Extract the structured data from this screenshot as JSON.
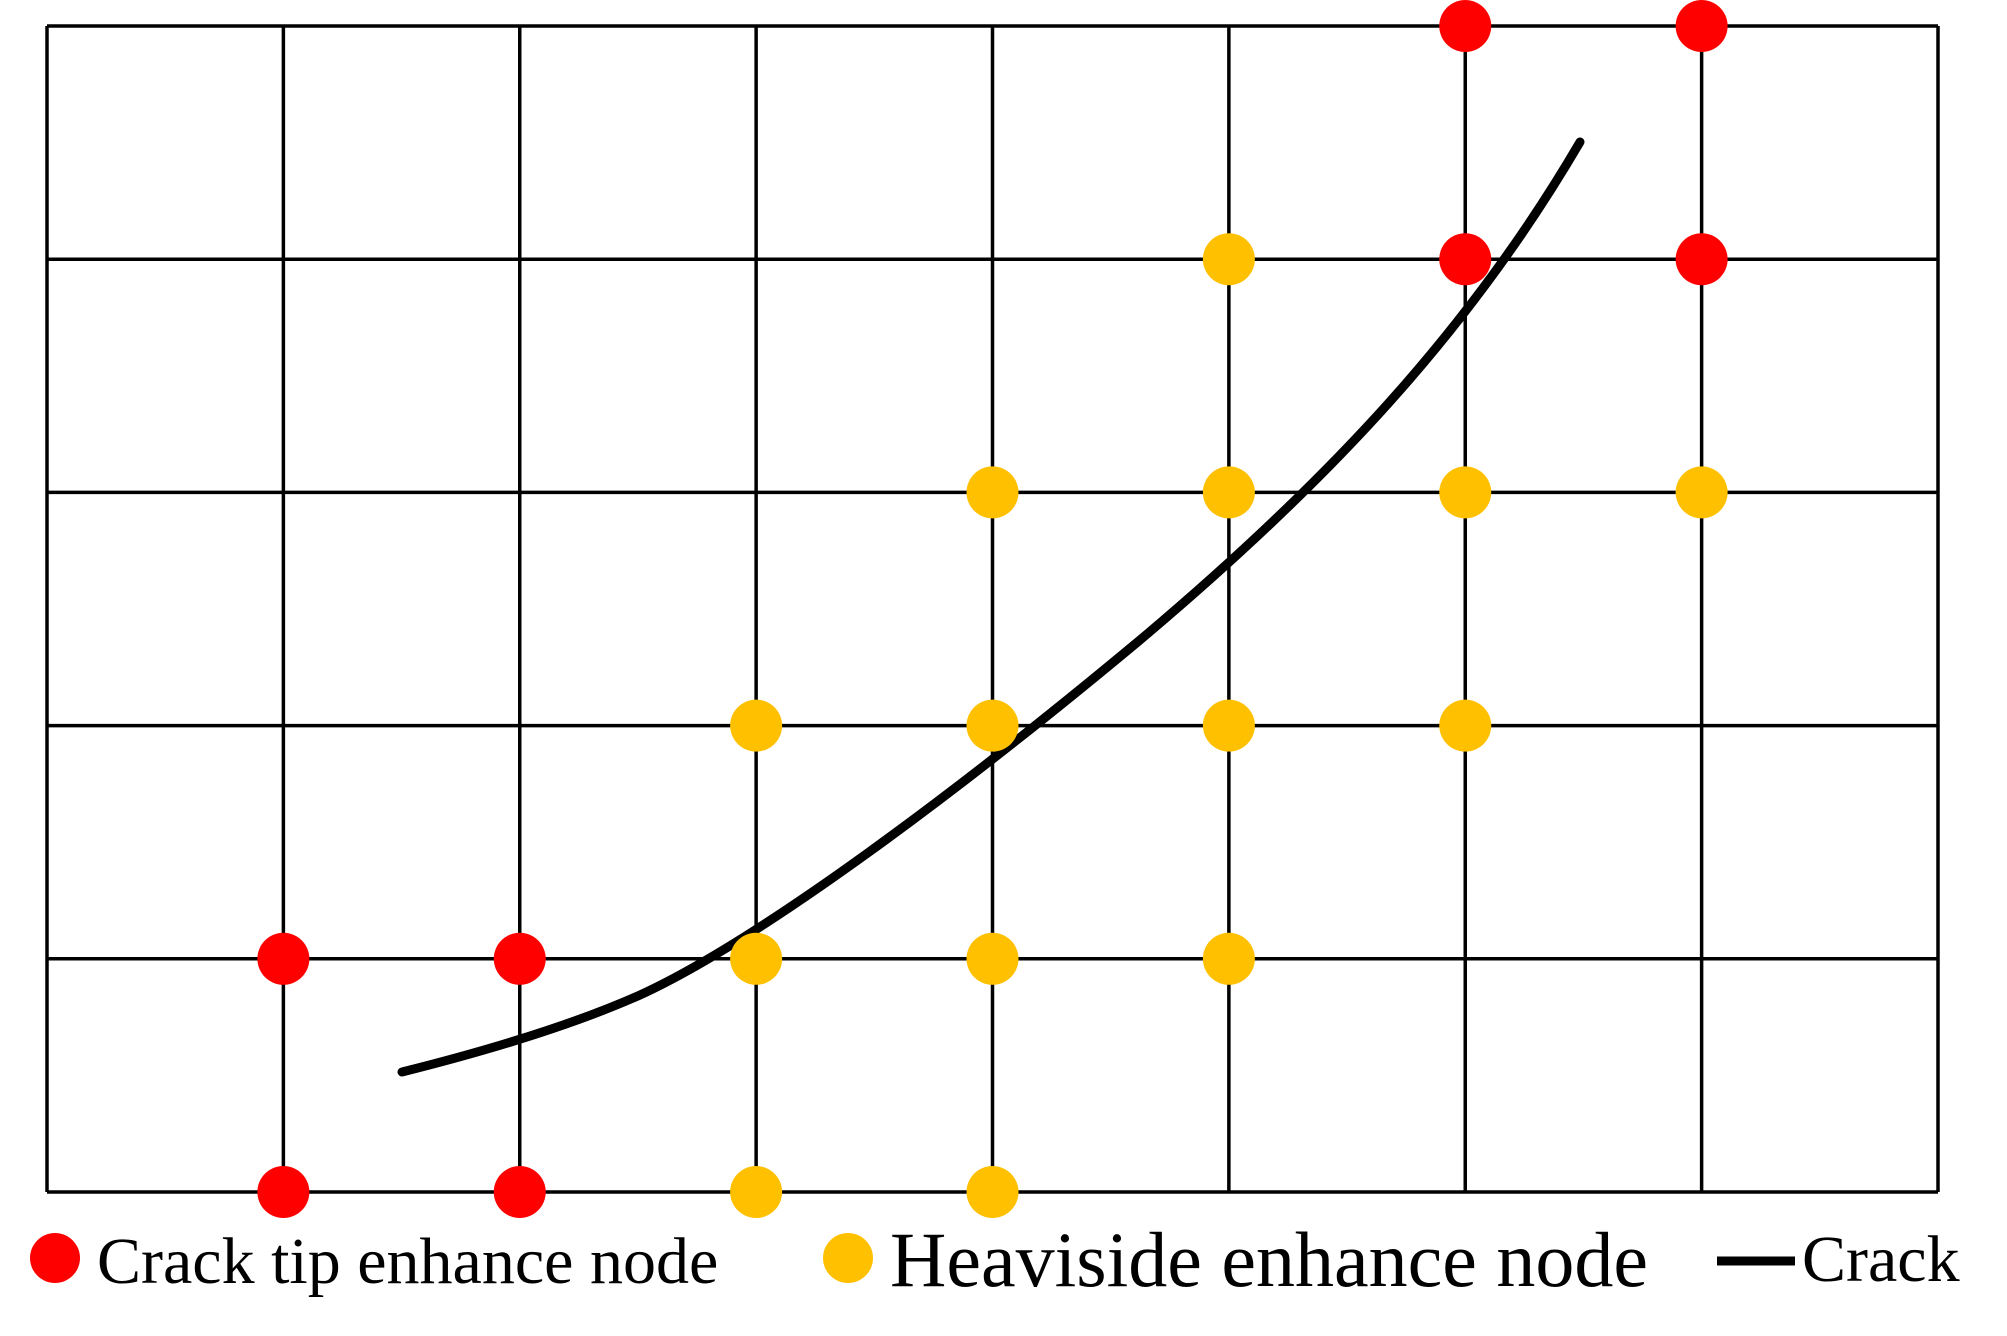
{
  "diagram": {
    "grid": {
      "columns": 8,
      "rows": 5,
      "line_color": "#000000"
    },
    "colors": {
      "crack_tip_node": "#ff0000",
      "heaviside_node": "#ffc000",
      "crack": "#000000"
    },
    "crack_tip_nodes": [
      {
        "col": 6,
        "row": 0
      },
      {
        "col": 7,
        "row": 0
      },
      {
        "col": 6,
        "row": 1
      },
      {
        "col": 7,
        "row": 1
      },
      {
        "col": 1,
        "row": 4
      },
      {
        "col": 2,
        "row": 4
      },
      {
        "col": 1,
        "row": 5
      },
      {
        "col": 2,
        "row": 5
      }
    ],
    "heaviside_nodes": [
      {
        "col": 5,
        "row": 1
      },
      {
        "col": 4,
        "row": 2
      },
      {
        "col": 5,
        "row": 2
      },
      {
        "col": 6,
        "row": 2
      },
      {
        "col": 7,
        "row": 2
      },
      {
        "col": 3,
        "row": 3
      },
      {
        "col": 4,
        "row": 3
      },
      {
        "col": 5,
        "row": 3
      },
      {
        "col": 6,
        "row": 3
      },
      {
        "col": 3,
        "row": 4
      },
      {
        "col": 4,
        "row": 4
      },
      {
        "col": 5,
        "row": 4
      },
      {
        "col": 3,
        "row": 5
      },
      {
        "col": 4,
        "row": 5
      }
    ]
  },
  "legend": {
    "crack_tip_label": "Crack tip enhance node",
    "heaviside_label": "Heaviside enhance node",
    "crack_label": "Crack"
  }
}
